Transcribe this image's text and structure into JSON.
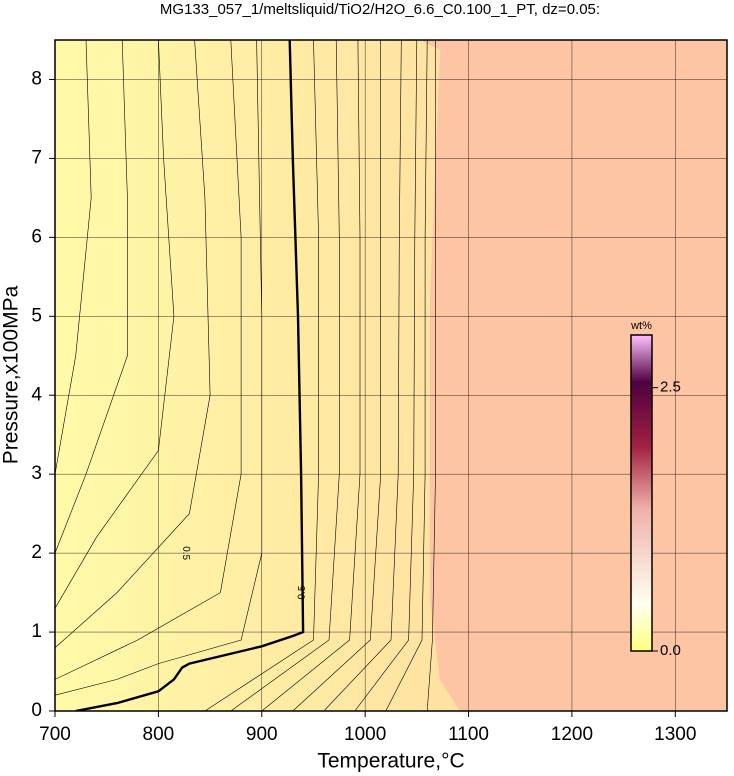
{
  "chart_data": {
    "type": "contour",
    "title": "MG133_057_1/meltsliquid/TiO2/H2O_6.6_C0.100_1_PT, dz=0.05:",
    "x_label": "Temperature,°C",
    "y_label": "Pressure,x100MPa",
    "xlim": [
      700,
      1350
    ],
    "ylim": [
      0,
      8.5
    ],
    "xticks": [
      700,
      800,
      900,
      1000,
      1100,
      1200,
      1300
    ],
    "yticks": [
      0,
      1,
      2,
      3,
      4,
      5,
      6,
      7,
      8
    ],
    "grid": true,
    "contours": [
      {
        "level": 0.5,
        "bold": true,
        "x": [
          720,
          760,
          800,
          815,
          823,
          830,
          900,
          930,
          940,
          938,
          935,
          930,
          927
        ],
        "y": [
          0,
          0.1,
          0.25,
          0.4,
          0.55,
          0.6,
          0.82,
          0.95,
          1.0,
          3,
          5,
          7,
          8.5
        ]
      },
      {
        "level": 0.45,
        "x": [
          845,
          950,
          955,
          955,
          950
        ],
        "y": [
          0,
          0.9,
          3,
          6,
          8.5
        ]
      },
      {
        "level": 0.4,
        "x": [
          870,
          965,
          975,
          975,
          972
        ],
        "y": [
          0,
          0.9,
          3,
          6,
          8.5
        ]
      },
      {
        "level": 0.35,
        "x": [
          900,
          985,
          995,
          995,
          993
        ],
        "y": [
          0,
          0.9,
          3,
          6,
          8.5
        ]
      },
      {
        "level": 0.3,
        "x": [
          930,
          1005,
          1015,
          1015,
          1015
        ],
        "y": [
          0,
          0.9,
          3,
          6,
          8.5
        ]
      },
      {
        "level": 0.25,
        "x": [
          960,
          1025,
          1032,
          1033,
          1035
        ],
        "y": [
          0,
          0.9,
          3,
          6,
          8.5
        ]
      },
      {
        "level": 0.2,
        "x": [
          990,
          1042,
          1047,
          1048,
          1050
        ],
        "y": [
          0,
          0.9,
          3,
          6,
          8.5
        ]
      },
      {
        "level": 0.15,
        "x": [
          1020,
          1055,
          1058,
          1058,
          1060
        ],
        "y": [
          0,
          0.9,
          3,
          6,
          8.5
        ]
      },
      {
        "level": 0.1,
        "x": [
          1060,
          1065,
          1068,
          1068,
          1068
        ],
        "y": [
          0,
          0.9,
          3,
          6,
          8.5
        ]
      },
      {
        "level": 0.55,
        "x": [
          700,
          760,
          800,
          880,
          900,
          900,
          895
        ],
        "y": [
          0.2,
          0.4,
          0.6,
          0.9,
          2,
          5,
          8.5
        ]
      },
      {
        "level": 0.6,
        "x": [
          700,
          780,
          860,
          880,
          880,
          870
        ],
        "y": [
          0.4,
          0.9,
          1.5,
          3,
          6,
          8.5
        ]
      },
      {
        "level": 0.65,
        "x": [
          700,
          760,
          830,
          850,
          845,
          835
        ],
        "y": [
          0.8,
          1.5,
          2.5,
          4,
          6.5,
          8.5
        ]
      },
      {
        "level": 0.7,
        "x": [
          700,
          740,
          800,
          815,
          805,
          800
        ],
        "y": [
          1.3,
          2.2,
          3.3,
          5,
          7,
          8.5
        ]
      },
      {
        "level": 0.75,
        "x": [
          700,
          730,
          770,
          770,
          765
        ],
        "y": [
          2,
          3,
          4.5,
          6.5,
          8.5
        ]
      },
      {
        "level": 0.8,
        "x": [
          700,
          720,
          735,
          730
        ],
        "y": [
          3,
          4.5,
          6.5,
          8.5
        ]
      }
    ],
    "colorbar": {
      "label": "wt%",
      "lim": [
        0,
        3.0
      ],
      "ticks": [
        {
          "value": 0,
          "label": "0.0"
        },
        {
          "value": 2.5,
          "label": "2.5"
        }
      ]
    }
  }
}
